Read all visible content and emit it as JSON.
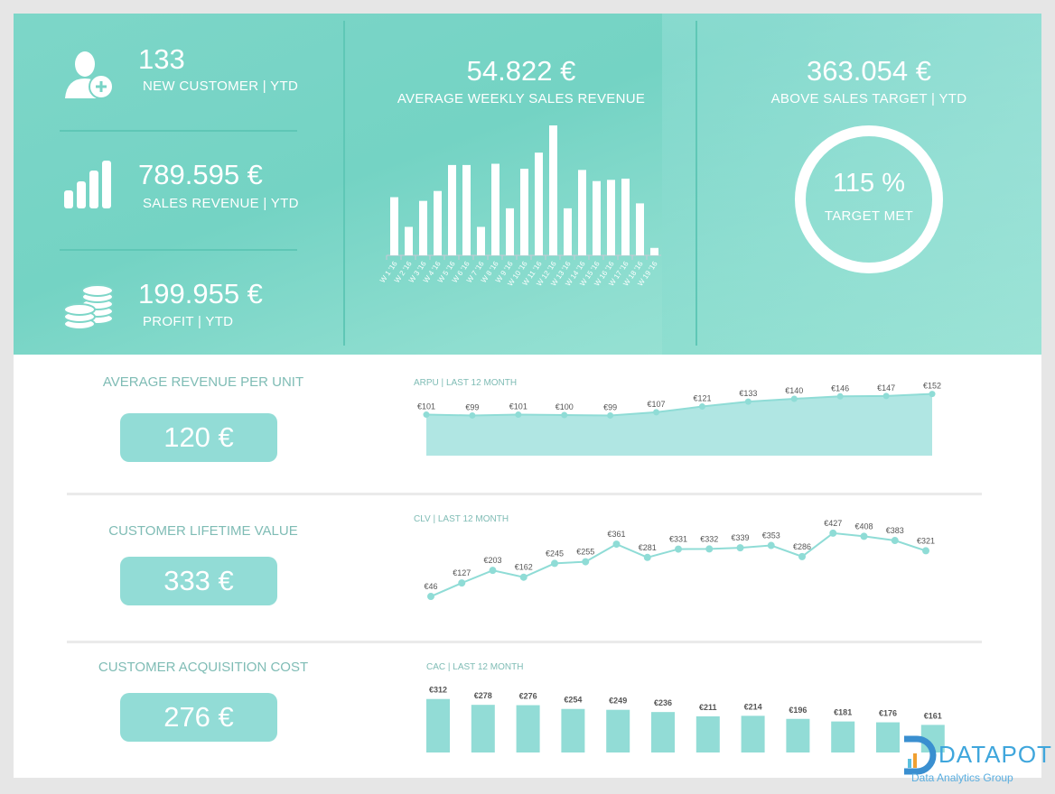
{
  "kpis_top": {
    "new_customer": {
      "value": "133",
      "label": "NEW CUSTOMER | YTD"
    },
    "sales_revenue": {
      "value": "789.595 €",
      "label": "SALES REVENUE | YTD"
    },
    "profit": {
      "value": "199.955 €",
      "label": "PROFIT | YTD"
    },
    "avg_weekly": {
      "value": "54.822 €",
      "label": "AVERAGE WEEKLY SALES REVENUE"
    },
    "above_target": {
      "value": "363.054 €",
      "label": "ABOVE SALES TARGET | YTD"
    },
    "target_met": {
      "value": "115 %",
      "label": "TARGET MET",
      "fraction": 1.0
    }
  },
  "metrics": [
    {
      "title": "AVERAGE REVENUE PER UNIT",
      "value": "120 €",
      "chart_title": "ARPU | LAST 12 MONTH"
    },
    {
      "title": "CUSTOMER LIFETIME VALUE",
      "value": "333 €",
      "chart_title": "CLV | LAST 12 MONTH"
    },
    {
      "title": "CUSTOMER ACQUISITION COST",
      "value": "276 €",
      "chart_title": "CAC | LAST 12 MONTH"
    }
  ],
  "logo": {
    "name": "DATAPOT",
    "tagline": "Data Analytics Group"
  },
  "colors": {
    "accent": "#92dcd6",
    "line": "#8fdcd6",
    "area": "#b0e6e3"
  },
  "chart_data": [
    {
      "type": "bar",
      "title": "AVERAGE WEEKLY SALES REVENUE",
      "categories": [
        "W 1 '16",
        "W 2 '16",
        "W 3 '16",
        "W 4 '16",
        "W 5 '16",
        "W 6 '16",
        "W 7 '16",
        "W 8 '16",
        "W 9 '16",
        "W 10 '16",
        "W 11 '16",
        "W 12 '16",
        "W 13 '16",
        "W 14 '16",
        "W 15 '16",
        "W 16 '16",
        "W 17 '16",
        "W 18 '16",
        "W 19 '16"
      ],
      "values": [
        47,
        23,
        44,
        52,
        73,
        73,
        23,
        74,
        38,
        70,
        83,
        105,
        38,
        69,
        60,
        61,
        62,
        42,
        6
      ],
      "ylim": [
        0,
        105
      ]
    },
    {
      "type": "area",
      "title": "ARPU | LAST 12 MONTH",
      "labels": [
        "€101",
        "€99",
        "€101",
        "€100",
        "€99",
        "€107",
        "€121",
        "€133",
        "€140",
        "€146",
        "€147",
        "€152"
      ],
      "values": [
        101,
        99,
        101,
        100,
        99,
        107,
        121,
        133,
        140,
        146,
        147,
        152
      ]
    },
    {
      "type": "line",
      "title": "CLV | LAST 12 MONTH",
      "labels": [
        "€46",
        "€127",
        "€203",
        "€162",
        "€245",
        "€255",
        "€361",
        "€281",
        "€331",
        "€332",
        "€339",
        "€353",
        "€286",
        "€427",
        "€408",
        "€383",
        "€321"
      ],
      "values": [
        46,
        127,
        203,
        162,
        245,
        255,
        361,
        281,
        331,
        332,
        339,
        353,
        286,
        427,
        408,
        383,
        321
      ]
    },
    {
      "type": "bar",
      "title": "CAC | LAST 12 MONTH",
      "labels": [
        "€312",
        "€278",
        "€276",
        "€254",
        "€249",
        "€236",
        "€211",
        "€214",
        "€196",
        "€181",
        "€176",
        "€161"
      ],
      "values": [
        312,
        278,
        276,
        254,
        249,
        236,
        211,
        214,
        196,
        181,
        176,
        161
      ]
    }
  ]
}
